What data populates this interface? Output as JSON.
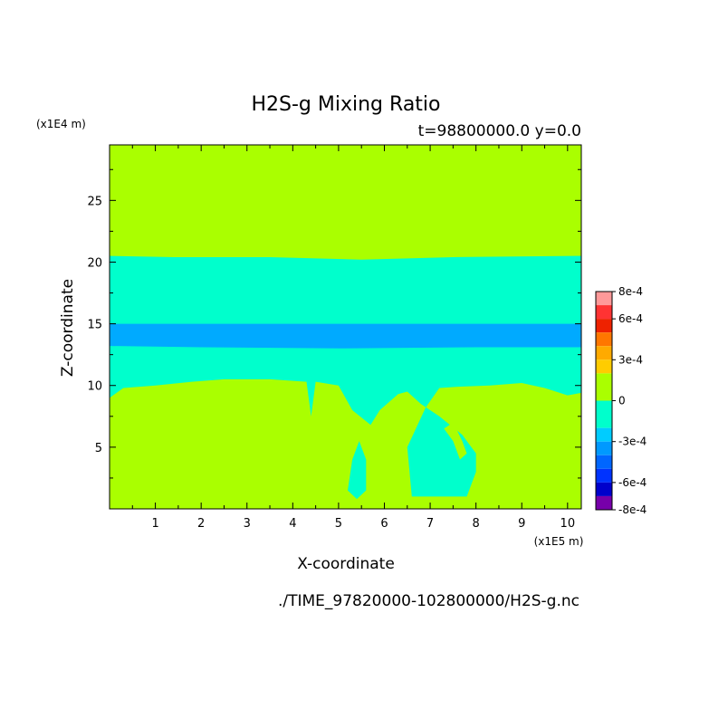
{
  "chart_data": {
    "type": "heatmap",
    "title": "H2S-g Mixing Ratio",
    "subtitle": "t=98800000.0 y=0.0",
    "xlabel": "X-coordinate",
    "ylabel": "Z-coordinate",
    "x_unit": "(x1E5 m)",
    "y_unit": "(x1E4 m)",
    "xlim": [
      0,
      10.3
    ],
    "ylim": [
      0,
      29.5
    ],
    "xticks": [
      1,
      2,
      3,
      4,
      5,
      6,
      7,
      8,
      9,
      10
    ],
    "yticks": [
      5,
      10,
      15,
      20,
      25
    ],
    "colorbar": {
      "labels": [
        "8e-4",
        "6e-4",
        "3e-4",
        "0",
        "-3e-4",
        "-6e-4",
        "-8e-4"
      ],
      "label_values": [
        0.0008,
        0.0006,
        0.0003,
        0,
        -0.0003,
        -0.0006,
        -0.0008
      ],
      "bands": [
        {
          "from": 0.0007,
          "to": 0.0008,
          "color": "#ff9999"
        },
        {
          "from": 0.0006,
          "to": 0.0007,
          "color": "#ff3333"
        },
        {
          "from": 0.0005,
          "to": 0.0006,
          "color": "#ee2200"
        },
        {
          "from": 0.0004,
          "to": 0.0005,
          "color": "#ff7700"
        },
        {
          "from": 0.0003,
          "to": 0.0004,
          "color": "#ffaa00"
        },
        {
          "from": 0.0002,
          "to": 0.0003,
          "color": "#ffcc00"
        },
        {
          "from": 0.0,
          "to": 0.0002,
          "color": "#aaff00"
        },
        {
          "from": -0.0002,
          "to": 0.0,
          "color": "#00ffcc"
        },
        {
          "from": -0.0003,
          "to": -0.0002,
          "color": "#00ccff"
        },
        {
          "from": -0.0004,
          "to": -0.0003,
          "color": "#0099ff"
        },
        {
          "from": -0.0005,
          "to": -0.0004,
          "color": "#0066ff"
        },
        {
          "from": -0.0006,
          "to": -0.0005,
          "color": "#0033ff"
        },
        {
          "from": -0.0007,
          "to": -0.0006,
          "color": "#0000cc"
        },
        {
          "from": -0.0008,
          "to": -0.0007,
          "color": "#7700aa"
        }
      ]
    },
    "regions": [
      {
        "level": 0.0001,
        "color": "#aaff00",
        "polygon": [
          [
            0,
            0
          ],
          [
            10.3,
            0
          ],
          [
            10.3,
            29.5
          ],
          [
            0,
            29.5
          ]
        ]
      },
      {
        "level": -0.0001,
        "color": "#00ffcc",
        "polygon": [
          [
            0,
            20.5
          ],
          [
            1.4,
            20.4
          ],
          [
            3.5,
            20.4
          ],
          [
            5.5,
            20.2
          ],
          [
            7.5,
            20.4
          ],
          [
            10.3,
            20.5
          ],
          [
            10.3,
            9.4
          ],
          [
            10,
            9.2
          ],
          [
            9.5,
            9.8
          ],
          [
            9,
            10.2
          ],
          [
            8.3,
            10
          ],
          [
            7.6,
            9.9
          ],
          [
            7.2,
            9.8
          ],
          [
            6.9,
            8.2
          ],
          [
            6.5,
            5
          ],
          [
            6.6,
            1
          ],
          [
            7.8,
            1
          ],
          [
            8,
            3
          ],
          [
            8,
            4.5
          ],
          [
            7.7,
            6
          ],
          [
            7.2,
            7.5
          ],
          [
            6.8,
            8.5
          ],
          [
            6.5,
            9.5
          ],
          [
            6.3,
            9.3
          ],
          [
            5.9,
            8
          ],
          [
            5.7,
            6.8
          ],
          [
            5.3,
            8
          ],
          [
            5.0,
            10
          ],
          [
            4.5,
            10.3
          ],
          [
            4.4,
            7.5
          ],
          [
            4.3,
            10.3
          ],
          [
            3.5,
            10.5
          ],
          [
            2.5,
            10.5
          ],
          [
            1.8,
            10.3
          ],
          [
            1.0,
            10
          ],
          [
            0.3,
            9.8
          ],
          [
            0,
            9
          ]
        ]
      },
      {
        "level": -0.0001,
        "color": "#00ffcc",
        "polygon": [
          [
            5.3,
            4
          ],
          [
            5.45,
            5.5
          ],
          [
            5.6,
            4
          ],
          [
            5.6,
            1.5
          ],
          [
            5.4,
            0.8
          ],
          [
            5.2,
            1.5
          ]
        ]
      },
      {
        "level": -0.00035,
        "color": "#00aaff",
        "polygon": [
          [
            0,
            15
          ],
          [
            10.3,
            15
          ],
          [
            10.3,
            13.1
          ],
          [
            8,
            13.1
          ],
          [
            5,
            13.0
          ],
          [
            2,
            13.1
          ],
          [
            0,
            13.2
          ]
        ]
      },
      {
        "level": 0.0001,
        "color": "#aaff00",
        "polygon": [
          [
            6.45,
            8
          ],
          [
            6.5,
            9
          ],
          [
            6.7,
            8.8
          ],
          [
            6.6,
            7.5
          ]
        ]
      },
      {
        "level": 0.0001,
        "color": "#aaff00",
        "polygon": [
          [
            7.5,
            7
          ],
          [
            7.7,
            5.5
          ],
          [
            7.8,
            4.5
          ],
          [
            7.65,
            4
          ],
          [
            7.5,
            5.5
          ],
          [
            7.3,
            6.5
          ]
        ]
      }
    ]
  },
  "filepath": "./TIME_97820000-102800000/H2S-g.nc"
}
